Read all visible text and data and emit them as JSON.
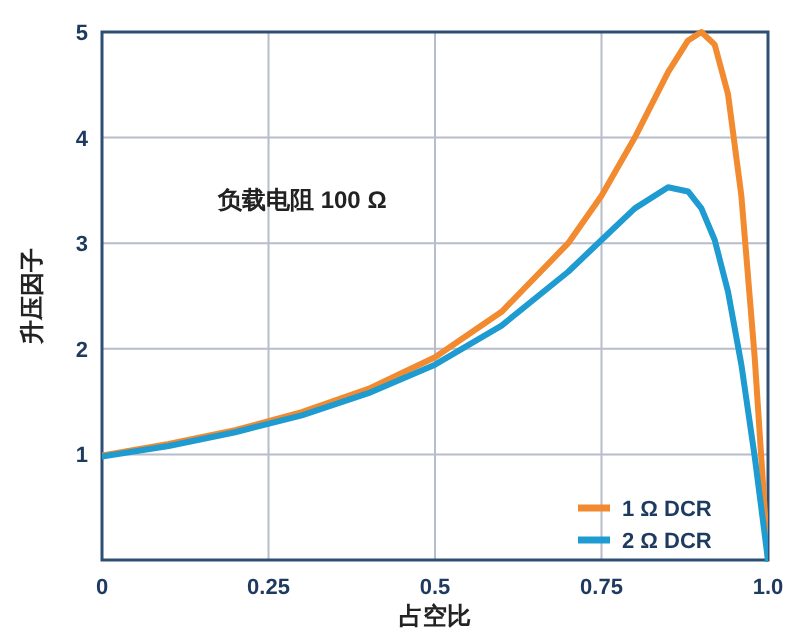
{
  "chart_data": {
    "type": "line",
    "xlabel": "占空比",
    "ylabel": "升压因子",
    "annotations": [
      "负载电阻 100 Ω"
    ],
    "x": [
      0,
      0.1,
      0.2,
      0.3,
      0.4,
      0.5,
      0.6,
      0.7,
      0.75,
      0.8,
      0.85,
      0.88,
      0.9,
      0.92,
      0.94,
      0.96,
      0.98,
      1.0
    ],
    "series": [
      {
        "name": "1 Ω DCR",
        "color": "#f28a30",
        "values": [
          0.99,
          1.1,
          1.23,
          1.4,
          1.62,
          1.92,
          2.35,
          3.0,
          3.45,
          4.0,
          4.62,
          4.92,
          5.0,
          4.88,
          4.41,
          3.45,
          1.92,
          0
        ]
      },
      {
        "name": "2 Ω DCR",
        "color": "#1e9bd0",
        "values": [
          0.98,
          1.08,
          1.21,
          1.37,
          1.58,
          1.85,
          2.22,
          2.73,
          3.03,
          3.33,
          3.53,
          3.49,
          3.33,
          3.03,
          2.54,
          1.85,
          0.98,
          0
        ]
      }
    ],
    "xlim": [
      0,
      1
    ],
    "ylim": [
      0,
      5
    ],
    "xticks": [
      0,
      0.25,
      0.5,
      0.75,
      {
        "value": 1,
        "label": "1.0"
      }
    ],
    "yticks": [
      1,
      2,
      3,
      4,
      5
    ],
    "grid": true,
    "legend": "bottom right",
    "line_style": "solid"
  }
}
